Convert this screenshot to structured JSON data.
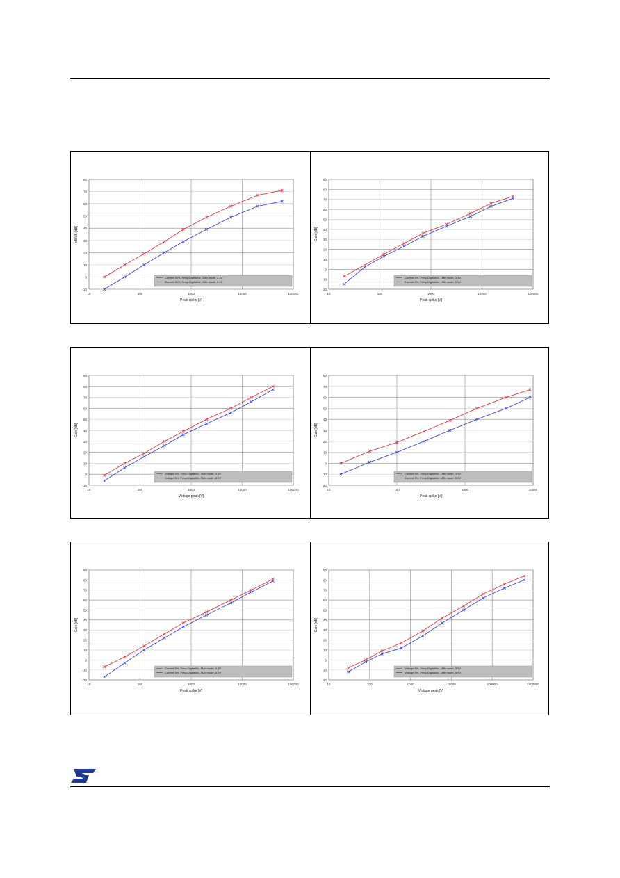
{
  "page": {
    "title": "",
    "footer_logo": "ST"
  },
  "colors": {
    "red": "#e8343c",
    "blue": "#3745e0",
    "grid": "#999999",
    "legend_bg": "#bdbdbd"
  },
  "chart_data": [
    {
      "type": "line",
      "title": "",
      "xlabel": "Peak spike [V]",
      "ylabel": "dB/dB [dB]",
      "xscale": "log",
      "xlim": [
        10,
        100000
      ],
      "ylim": [
        -10,
        80
      ],
      "yticks": [
        -10,
        0,
        10,
        20,
        30,
        40,
        50,
        60,
        70,
        80
      ],
      "xticks": [
        10,
        100,
        1000,
        10000,
        100000
      ],
      "xtick_labels": [
        "10",
        "100",
        "1000",
        "10000",
        "100000"
      ],
      "legend": "bottom-right",
      "series": [
        {
          "name": "Current 50%, Freq=DigitalMc, 1Mb mode, 3.3V",
          "color": "red",
          "x": [
            20,
            50,
            120,
            300,
            700,
            2000,
            6000,
            20000,
            60000
          ],
          "y": [
            0,
            10,
            19,
            29,
            39,
            49,
            58,
            67,
            71
          ]
        },
        {
          "name": "Current 50%, Freq=DigitalMc, 1Mb mode, 5.0V",
          "color": "blue",
          "x": [
            20,
            50,
            120,
            300,
            700,
            2000,
            6000,
            20000,
            60000
          ],
          "y": [
            -10,
            0,
            10,
            20,
            29,
            39,
            49,
            58,
            62
          ]
        }
      ]
    },
    {
      "type": "line",
      "title": "",
      "xlabel": "Peak spike [V]",
      "ylabel": "Gain [dB]",
      "xscale": "log",
      "xlim": [
        10,
        100000
      ],
      "ylim": [
        -20,
        90
      ],
      "yticks": [
        -20,
        -10,
        0,
        10,
        20,
        30,
        40,
        50,
        60,
        70,
        80,
        90
      ],
      "xticks": [
        10,
        100,
        1000,
        10000,
        100000
      ],
      "xtick_labels": [
        "10",
        "100",
        "1000",
        "10000",
        "100000"
      ],
      "legend": "bottom-right",
      "series": [
        {
          "name": "Current 5%, Freq=DigitalMc, 1Mb mode, 3.3V",
          "color": "red",
          "x": [
            20,
            50,
            120,
            300,
            700,
            2000,
            6000,
            15000,
            40000
          ],
          "y": [
            -7,
            4,
            15,
            26,
            36,
            45,
            56,
            66,
            73
          ]
        },
        {
          "name": "Current 5%, Freq=DigitalMc, 1Mb mode, 5.0V",
          "color": "blue",
          "x": [
            20,
            50,
            120,
            300,
            700,
            2000,
            6000,
            15000,
            40000
          ],
          "y": [
            -15,
            2,
            13,
            23,
            33,
            43,
            53,
            63,
            71
          ]
        }
      ]
    },
    {
      "type": "line",
      "title": "",
      "xlabel": "Voltage peak [V]",
      "ylabel": "Gain [dB]",
      "xscale": "log",
      "xlim": [
        10,
        100000
      ],
      "ylim": [
        -10,
        90
      ],
      "yticks": [
        -10,
        0,
        10,
        20,
        30,
        40,
        50,
        60,
        70,
        80,
        90
      ],
      "xticks": [
        10,
        100,
        1000,
        10000,
        100000
      ],
      "xtick_labels": [
        "10",
        "100",
        "1000",
        "10000",
        "100000"
      ],
      "legend": "bottom-right",
      "series": [
        {
          "name": "Voltage 5%, Freq=DigitalMc, 1Mb mode, 3.3V",
          "color": "red",
          "x": [
            20,
            50,
            120,
            300,
            700,
            2000,
            6000,
            15000,
            40000
          ],
          "y": [
            -1,
            10,
            19,
            30,
            39,
            50,
            60,
            70,
            80
          ]
        },
        {
          "name": "Voltage 5%, Freq=DigitalMc, 1Mb mode, 5.0V",
          "color": "blue",
          "x": [
            20,
            50,
            120,
            300,
            700,
            2000,
            6000,
            15000,
            40000
          ],
          "y": [
            -6,
            6,
            16,
            26,
            36,
            46,
            56,
            66,
            77
          ]
        }
      ]
    },
    {
      "type": "line",
      "title": "",
      "xlabel": "Peak spike [V]",
      "ylabel": "Gain [dB]",
      "xscale": "log",
      "xlim": [
        10,
        10000
      ],
      "ylim": [
        -20,
        80
      ],
      "yticks": [
        -20,
        -10,
        0,
        10,
        20,
        30,
        40,
        50,
        60,
        70,
        80
      ],
      "xticks": [
        10,
        100,
        1000,
        10000
      ],
      "xtick_labels": [
        "10",
        "100",
        "1000",
        "10000"
      ],
      "legend": "bottom-right",
      "series": [
        {
          "name": "Current 5%, Freq=DigitalMc, 1Mb mode, 3.3V",
          "color": "red",
          "x": [
            15,
            40,
            100,
            250,
            600,
            1500,
            4000,
            9000
          ],
          "y": [
            0,
            11,
            19,
            29,
            39,
            50,
            60,
            67
          ]
        },
        {
          "name": "Current 5%, Freq=DigitalMc, 1Mb mode, 5.0V",
          "color": "blue",
          "x": [
            15,
            40,
            100,
            250,
            600,
            1500,
            4000,
            9000
          ],
          "y": [
            -10,
            1,
            10,
            20,
            30,
            40,
            50,
            60
          ]
        }
      ]
    },
    {
      "type": "line",
      "title": "",
      "xlabel": "Peak spike [V]",
      "ylabel": "Gain [dB]",
      "xscale": "log",
      "xlim": [
        10,
        100000
      ],
      "ylim": [
        -20,
        90
      ],
      "yticks": [
        -20,
        -10,
        0,
        10,
        20,
        30,
        40,
        50,
        60,
        70,
        80,
        90
      ],
      "xticks": [
        10,
        100,
        1000,
        10000,
        100000
      ],
      "xtick_labels": [
        "10",
        "100",
        "1000",
        "10000",
        "100000"
      ],
      "legend": "bottom-right",
      "series": [
        {
          "name": "Current 5%, Freq=DigitalMc, 1Mb mode, 3.3V",
          "color": "red",
          "x": [
            20,
            50,
            120,
            300,
            700,
            2000,
            6000,
            15000,
            40000
          ],
          "y": [
            -7,
            3,
            14,
            26,
            37,
            48,
            60,
            70,
            81
          ]
        },
        {
          "name": "Current 5%, Freq=DigitalMc, 1Mb mode, 5.0V",
          "color": "blue",
          "x": [
            20,
            50,
            120,
            300,
            700,
            2000,
            6000,
            15000,
            40000
          ],
          "y": [
            -17,
            -3,
            10,
            22,
            33,
            45,
            57,
            68,
            79
          ]
        }
      ]
    },
    {
      "type": "line",
      "title": "",
      "xlabel": "Voltage peak [V]",
      "ylabel": "Gain [dB]",
      "xscale": "log",
      "xlim": [
        10,
        1000000
      ],
      "ylim": [
        -20,
        90
      ],
      "yticks": [
        -20,
        -10,
        0,
        10,
        20,
        30,
        40,
        50,
        60,
        70,
        80,
        90
      ],
      "xticks": [
        10,
        100,
        1000,
        10000,
        100000,
        1000000
      ],
      "xtick_labels": [
        "10",
        "100",
        "1000",
        "10000",
        "100000",
        "1000000"
      ],
      "legend": "bottom-right",
      "series": [
        {
          "name": "Voltage 5%, Freq=DigitalMc, 1Mb mode, 3.3V",
          "color": "red",
          "x": [
            30,
            80,
            200,
            600,
            2000,
            6000,
            20000,
            60000,
            200000,
            600000
          ],
          "y": [
            -8,
            0,
            9,
            17,
            29,
            42,
            54,
            66,
            76,
            84
          ]
        },
        {
          "name": "Voltage 5%, Freq=DigitalMc, 1Mb mode, 5.0V",
          "color": "blue",
          "x": [
            30,
            80,
            200,
            600,
            2000,
            6000,
            20000,
            60000,
            200000,
            600000
          ],
          "y": [
            -12,
            -2,
            6,
            12,
            24,
            37,
            50,
            62,
            72,
            80
          ]
        }
      ]
    }
  ]
}
